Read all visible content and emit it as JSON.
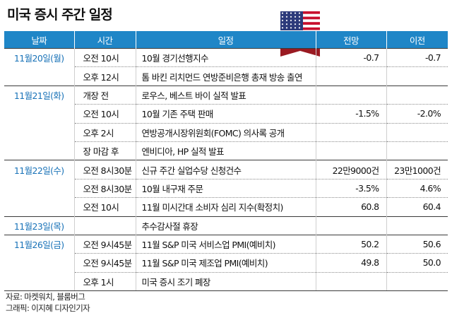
{
  "title": "미국 증시 주간 일정",
  "columns": {
    "date": "날짜",
    "time": "시간",
    "event": "일정",
    "forecast": "전망",
    "previous": "이전"
  },
  "rows": [
    {
      "date": "11월20일(월)",
      "time": "오전 10시",
      "event": "10월 경기선행지수",
      "forecast": "-0.7",
      "previous": "-0.7"
    },
    {
      "date": "",
      "time": "오후 12시",
      "event": "톰 바킨 리치먼드 연방준비은행 총재 방송 출연",
      "forecast": "",
      "previous": ""
    },
    {
      "date": "11월21일(화)",
      "time": "개장 전",
      "event": "로우스, 베스트 바이 실적 발표",
      "forecast": "",
      "previous": ""
    },
    {
      "date": "",
      "time": "오전 10시",
      "event": "10월 기존 주택 판매",
      "forecast": "-1.5%",
      "previous": "-2.0%"
    },
    {
      "date": "",
      "time": "오후 2시",
      "event": "연방공개시장위원회(FOMC) 의사록 공개",
      "forecast": "",
      "previous": ""
    },
    {
      "date": "",
      "time": "장 마감 후",
      "event": "엔비디아, HP 실적 발표",
      "forecast": "",
      "previous": ""
    },
    {
      "date": "11월22일(수)",
      "time": "오전 8시30분",
      "event": "신규 주간 실업수당 신청건수",
      "forecast": "22만9000건",
      "previous": "23만1000건"
    },
    {
      "date": "",
      "time": "오전 8시30분",
      "event": "10월 내구재 주문",
      "forecast": "-3.5%",
      "previous": "4.6%"
    },
    {
      "date": "",
      "time": "오전 10시",
      "event": "11월 미시간대 소비자 심리 지수(확정치)",
      "forecast": "60.8",
      "previous": "60.4"
    },
    {
      "date": "11월23일(목)",
      "time": "",
      "event": "추수감사절 휴장",
      "forecast": "",
      "previous": ""
    },
    {
      "date": "11월26일(금)",
      "time": "오전 9시45분",
      "event": "11월 S&P 미국 서비스업 PMI(예비치)",
      "forecast": "50.2",
      "previous": "50.6"
    },
    {
      "date": "",
      "time": "오전 9시45분",
      "event": "11월 S&P 미국 제조업 PMI(예비치)",
      "forecast": "49.8",
      "previous": "50.0"
    },
    {
      "date": "",
      "time": "오후 1시",
      "event": "미국 증시 조기 폐장",
      "forecast": "",
      "previous": ""
    }
  ],
  "footer": {
    "source": "자료: 마켓워치, 블룸버그",
    "credit": "그래픽: 이지혜 디자인기자"
  },
  "icons": {
    "flag": "us-flag-icon"
  },
  "colors": {
    "header_bg": "#1f86c7",
    "date_text": "#1a73b8"
  }
}
